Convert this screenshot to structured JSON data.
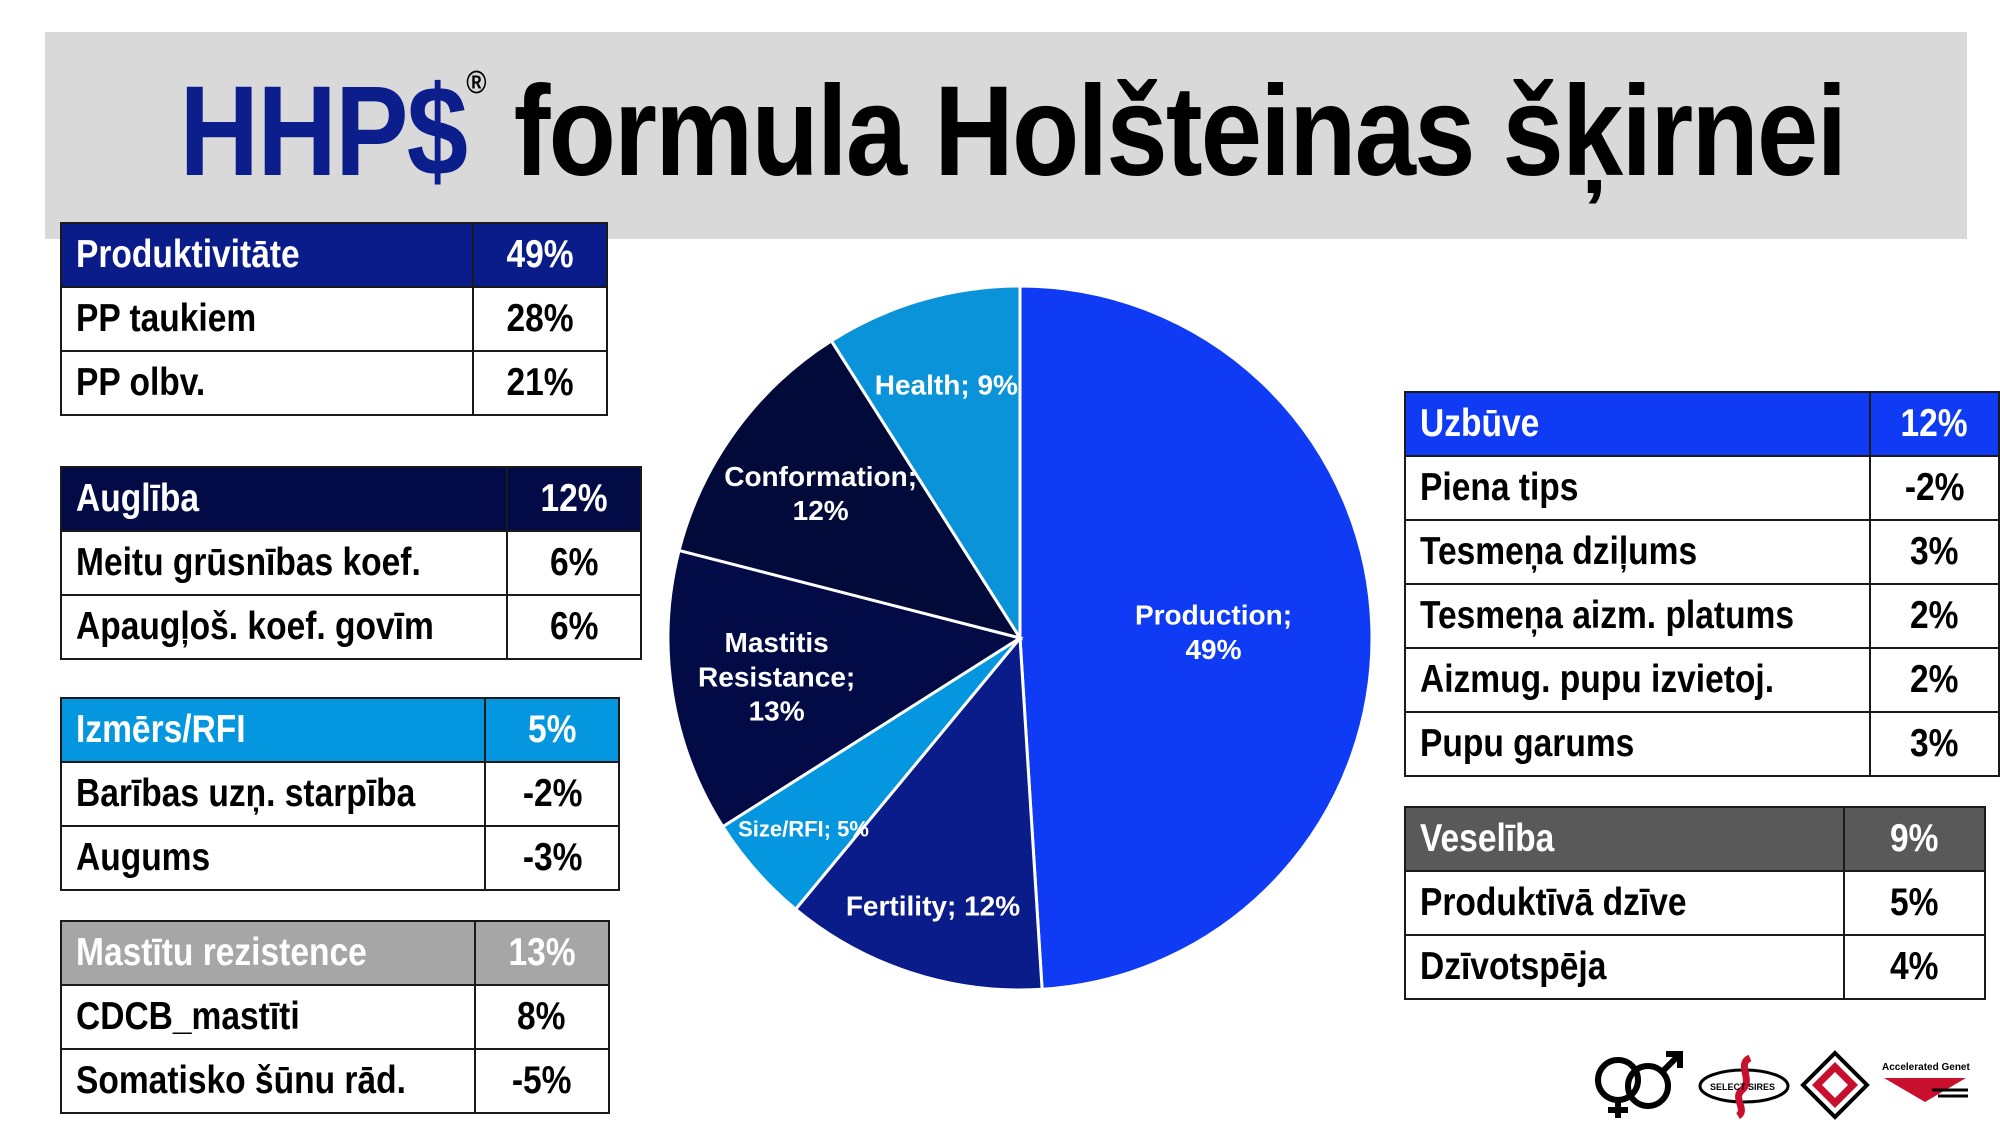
{
  "title": {
    "brand": "HHP$",
    "reg": "®",
    "rest": " formula Holšteinas šķirnei"
  },
  "colors": {
    "production": "#0f3bf5",
    "fertility": "#0a1b8a",
    "size_rfi": "#0596e0",
    "mastitis": "#020b46",
    "conformation": "#010a38",
    "health": "#0a93d8"
  },
  "tables": {
    "productivity": {
      "header": {
        "label": "Produktivitāte",
        "value": "49%"
      },
      "rows": [
        {
          "label": "PP taukiem",
          "value": "28%"
        },
        {
          "label": "PP olbv.",
          "value": "21%"
        }
      ]
    },
    "fertility": {
      "header": {
        "label": "Auglība",
        "value": "12%"
      },
      "rows": [
        {
          "label": "Meitu grūsnības koef.",
          "value": "6%"
        },
        {
          "label": "Apaugļoš. koef. govīm",
          "value": "6%"
        }
      ]
    },
    "size": {
      "header": {
        "label": "Izmērs/RFI",
        "value": "5%"
      },
      "rows": [
        {
          "label": "Barības uzņ. starpība",
          "value": "-2%"
        },
        {
          "label": "Augums",
          "value": "-3%"
        }
      ]
    },
    "mastitis": {
      "header": {
        "label": "Mastītu rezistence",
        "value": "13%"
      },
      "rows": [
        {
          "label": "CDCB_mastīti",
          "value": "8%"
        },
        {
          "label": "Somatisko šūnu rād.",
          "value": "-5%"
        }
      ]
    },
    "conformation": {
      "header": {
        "label": "Uzbūve",
        "value": "12%"
      },
      "rows": [
        {
          "label": "Piena tips",
          "value": "-2%"
        },
        {
          "label": "Tesmeņa dziļums",
          "value": "3%"
        },
        {
          "label": "Tesmeņa aizm. platums",
          "value": "2%"
        },
        {
          "label": "Aizmug. pupu izvietoj.",
          "value": "2%"
        },
        {
          "label": "Pupu garums",
          "value": "3%"
        }
      ]
    },
    "health": {
      "header": {
        "label": "Veselība",
        "value": "9%"
      },
      "rows": [
        {
          "label": "Produktīvā dzīve",
          "value": "5%"
        },
        {
          "label": "Dzīvotspēja",
          "value": "4%"
        }
      ]
    }
  },
  "chart_data": {
    "type": "pie",
    "title": "",
    "slices": [
      {
        "name": "Production",
        "value": 49,
        "label_lines": [
          "Production;",
          "49%"
        ],
        "color": "#0f3bf5"
      },
      {
        "name": "Fertility",
        "value": 12,
        "label_lines": [
          "Fertility; 12%"
        ],
        "color": "#0a1b8a"
      },
      {
        "name": "Size/RFI",
        "value": 5,
        "label_lines": [
          "Size/RFI; 5%"
        ],
        "color": "#0596e0"
      },
      {
        "name": "Mastitis Resistance",
        "value": 13,
        "label_lines": [
          "Mastitis",
          "Resistance;",
          "13%"
        ],
        "color": "#020b46"
      },
      {
        "name": "Conformation",
        "value": 12,
        "label_lines": [
          "Conformation;",
          "12%"
        ],
        "color": "#010a38"
      },
      {
        "name": "Health",
        "value": 9,
        "label_lines": [
          "Health; 9%"
        ],
        "color": "#0a93d8"
      }
    ]
  },
  "logos": {
    "accelerated_genetics": "Accelerated Genetics",
    "select_sires": "SELECT SIRES"
  }
}
